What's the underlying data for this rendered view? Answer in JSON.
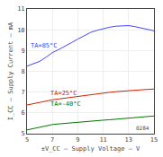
{
  "chart_data": {
    "type": "line",
    "xlabel": "±V_CC – Supply Voltage – V",
    "ylabel": "I_CC – Supply Current – mA",
    "x": [
      5,
      5.5,
      6,
      6.5,
      7,
      7.5,
      8,
      8.5,
      9,
      9.5,
      10,
      10.5,
      11,
      11.5,
      12,
      12.5,
      13,
      13.5,
      14,
      14.5,
      15
    ],
    "series": [
      {
        "color": "#4444ff",
        "values": [
          8.25,
          8.35,
          8.48,
          8.68,
          8.9,
          9.05,
          9.2,
          9.38,
          9.55,
          9.72,
          9.87,
          9.97,
          10.05,
          10.12,
          10.17,
          10.2,
          10.2,
          10.15,
          10.08,
          10.02,
          9.95
        ]
      },
      {
        "color": "#cc2200",
        "values": [
          6.38,
          6.45,
          6.52,
          6.58,
          6.63,
          6.67,
          6.71,
          6.76,
          6.81,
          6.86,
          6.9,
          6.93,
          6.96,
          6.99,
          7.02,
          7.05,
          7.07,
          7.09,
          7.11,
          7.13,
          7.15
        ]
      },
      {
        "color": "#007700",
        "values": [
          5.18,
          5.25,
          5.3,
          5.38,
          5.44,
          5.47,
          5.5,
          5.53,
          5.55,
          5.57,
          5.6,
          5.62,
          5.65,
          5.67,
          5.7,
          5.72,
          5.75,
          5.78,
          5.8,
          5.82,
          5.85
        ]
      }
    ],
    "annotations": [
      {
        "text": "TA=85°C",
        "x": 5.15,
        "y": 9.25,
        "color": "#4444ff"
      },
      {
        "text": "TA=25°C",
        "x": 6.7,
        "y": 6.95,
        "color": "#cc2200"
      },
      {
        "text": "TA=-40°C",
        "x": 6.7,
        "y": 6.42,
        "color": "#007700"
      },
      {
        "text": "0284",
        "color": "#444444"
      }
    ],
    "xlim": [
      5,
      15
    ],
    "xticks": [
      5,
      7,
      9,
      11,
      13,
      15
    ],
    "ylim": [
      5,
      11
    ],
    "yticks": [
      5,
      6,
      7,
      8,
      9,
      10,
      11
    ],
    "grid": true
  }
}
